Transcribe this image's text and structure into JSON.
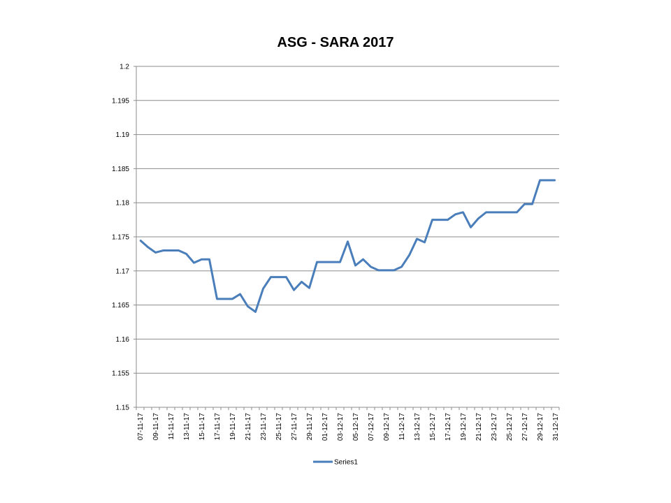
{
  "chart_data": {
    "type": "line",
    "title": "ASG - SARA 2017",
    "xlabel": "",
    "ylabel": "",
    "ylim": [
      1.15,
      1.2
    ],
    "yticks": [
      "1.15",
      "1.155",
      "1.16",
      "1.165",
      "1.17",
      "1.175",
      "1.18",
      "1.185",
      "1.19",
      "1.195",
      "1.2"
    ],
    "grid": true,
    "legend": "bottom",
    "color": "#4a7ebb",
    "x": [
      "07-11-17",
      "08-11-17",
      "09-11-17",
      "10-11-17",
      "11-11-17",
      "12-11-17",
      "13-11-17",
      "14-11-17",
      "15-11-17",
      "16-11-17",
      "17-11-17",
      "18-11-17",
      "19-11-17",
      "20-11-17",
      "21-11-17",
      "22-11-17",
      "23-11-17",
      "24-11-17",
      "25-11-17",
      "26-11-17",
      "27-11-17",
      "28-11-17",
      "29-11-17",
      "30-11-17",
      "01-12-17",
      "02-12-17",
      "03-12-17",
      "04-12-17",
      "05-12-17",
      "06-12-17",
      "07-12-17",
      "08-12-17",
      "09-12-17",
      "10-12-17",
      "11-12-17",
      "12-12-17",
      "13-12-17",
      "14-12-17",
      "15-12-17",
      "16-12-17",
      "17-12-17",
      "18-12-17",
      "19-12-17",
      "20-12-17",
      "21-12-17",
      "22-12-17",
      "23-12-17",
      "24-12-17",
      "25-12-17",
      "26-12-17",
      "27-12-17",
      "28-12-17",
      "29-12-17",
      "30-12-17",
      "31-12-17"
    ],
    "xtick_labels": [
      "07-11-17",
      "09-11-17",
      "11-11-17",
      "13-11-17",
      "15-11-17",
      "17-11-17",
      "19-11-17",
      "21-11-17",
      "23-11-17",
      "25-11-17",
      "27-11-17",
      "29-11-17",
      "01-12-17",
      "03-12-17",
      "05-12-17",
      "07-12-17",
      "09-12-17",
      "11-12-17",
      "13-12-17",
      "15-12-17",
      "17-12-17",
      "19-12-17",
      "21-12-17",
      "23-12-17",
      "25-12-17",
      "27-12-17",
      "29-12-17",
      "31-12-17"
    ],
    "series": [
      {
        "name": "Series1",
        "values": [
          1.1745,
          1.1735,
          1.1727,
          1.173,
          1.173,
          1.173,
          1.1725,
          1.1712,
          1.1717,
          1.1717,
          1.1659,
          1.1659,
          1.1659,
          1.1666,
          1.1648,
          1.164,
          1.1674,
          1.1691,
          1.1691,
          1.1691,
          1.1672,
          1.1684,
          1.1675,
          1.1713,
          1.1713,
          1.1713,
          1.1713,
          1.1743,
          1.1708,
          1.1717,
          1.1706,
          1.1701,
          1.1701,
          1.1701,
          1.1706,
          1.1723,
          1.1747,
          1.1742,
          1.1775,
          1.1775,
          1.1775,
          1.1783,
          1.1786,
          1.1764,
          1.1777,
          1.1786,
          1.1786,
          1.1786,
          1.1786,
          1.1786,
          1.1798,
          1.1798,
          1.1833,
          1.1833,
          1.1833
        ]
      }
    ]
  }
}
